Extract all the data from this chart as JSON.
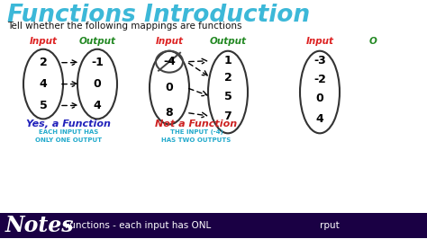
{
  "title": "Functions Introduction",
  "subtitle": "Tell whether the following mappings are functions",
  "bg_color": "#ffffff",
  "title_color": "#3cb8d8",
  "subtitle_color": "#111111",
  "diagram1": {
    "input_label": "Input",
    "output_label": "Output",
    "input_color": "#dd2222",
    "output_color": "#228822",
    "inputs": [
      "2",
      "4",
      "5"
    ],
    "outputs": [
      "-1",
      "0",
      "4"
    ],
    "arrows": [
      [
        0,
        0
      ],
      [
        1,
        1
      ],
      [
        2,
        2
      ]
    ],
    "verdict": "Yes, a Function",
    "verdict_color": "#2222bb",
    "note": "EACH INPUT HAS\nONLY ONE OUTPUT",
    "note_color": "#22aacc"
  },
  "diagram2": {
    "input_label": "Input",
    "output_label": "Output",
    "input_color": "#dd2222",
    "output_color": "#228822",
    "inputs": [
      "-4",
      "0",
      "8"
    ],
    "outputs": [
      "1",
      "2",
      "5",
      "7"
    ],
    "arrows": [
      [
        0,
        0
      ],
      [
        0,
        1
      ],
      [
        1,
        2
      ],
      [
        2,
        3
      ]
    ],
    "verdict": "Not a Function",
    "verdict_color": "#cc2222",
    "note": "THE INPUT (-4)\nHAS TWO OUTPUTS",
    "note_color": "#22aacc"
  },
  "diagram3": {
    "input_label": "Input",
    "output_label": "O",
    "input_color": "#dd2222",
    "output_color": "#228822",
    "inputs": [
      "-3",
      "-2",
      "0",
      "4"
    ]
  },
  "notes_label": "Notes",
  "notes_text": "Functions - each input has ONL",
  "notes_notes_color": "#330066",
  "notes_text_color": "#111111"
}
